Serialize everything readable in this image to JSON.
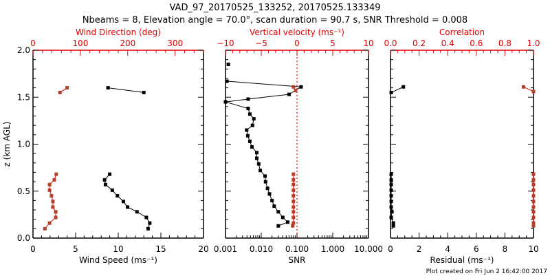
{
  "title_line1": "VAD_97_20170525_133252, 20170525.133349",
  "title_line2": "Nbeams = 8, Elevation angle = 70.0°, scan duration = 90.7 s, SNR Threshold = 0.008",
  "footer": "Plot created on Fri Jun  2 16:42:00 2017",
  "colors": {
    "primary": "#000000",
    "secondary": "#b5402a",
    "axis_red": "#e00000"
  },
  "chart_data": [
    {
      "type": "line",
      "panel": "wind",
      "ylabel": "z (km AGL)",
      "ylim": [
        0,
        2.0
      ],
      "yticks": [
        "0.0",
        "0.5",
        "1.0",
        "1.5",
        "2.0"
      ],
      "xlabel": "Wind Speed (ms⁻¹)",
      "xlim": [
        0,
        20
      ],
      "xticks": [
        "0",
        "5",
        "10",
        "15",
        "20"
      ],
      "top_xlabel": "Wind Direction (deg)",
      "top_xlim": [
        0,
        360
      ],
      "top_xticks": [
        "0",
        "100",
        "200",
        "300"
      ],
      "series": [
        {
          "name": "Wind Speed",
          "axis": "bottom",
          "color": "#000000",
          "segments": [
            [
              [
                8.8,
                1.6
              ],
              [
                13.0,
                1.55
              ]
            ],
            [
              [
                13.5,
                0.1
              ],
              [
                13.7,
                0.16
              ],
              [
                13.3,
                0.22
              ],
              [
                12.2,
                0.28
              ],
              [
                11.1,
                0.33
              ],
              [
                10.6,
                0.39
              ],
              [
                9.9,
                0.45
              ],
              [
                9.3,
                0.51
              ],
              [
                8.5,
                0.57
              ],
              [
                8.4,
                0.62
              ],
              [
                9.0,
                0.68
              ]
            ]
          ]
        },
        {
          "name": "Wind Direction",
          "axis": "top",
          "color": "#b5402a",
          "segments": [
            [
              [
                57,
                1.55
              ],
              [
                72,
                1.6
              ]
            ],
            [
              [
                25,
                0.1
              ],
              [
                35,
                0.16
              ],
              [
                48,
                0.22
              ],
              [
                48,
                0.28
              ],
              [
                42,
                0.33
              ],
              [
                42,
                0.39
              ],
              [
                39,
                0.45
              ],
              [
                35,
                0.51
              ],
              [
                35,
                0.57
              ],
              [
                45,
                0.62
              ],
              [
                49,
                0.68
              ]
            ]
          ]
        }
      ]
    },
    {
      "type": "line",
      "panel": "snr",
      "ylim": [
        0,
        2.0
      ],
      "xlabel": "SNR",
      "xscale": "log",
      "xlim": [
        0.001,
        10
      ],
      "xticks": [
        "0.001",
        "0.010",
        "0.100",
        "1.000",
        "10.000"
      ],
      "top_xlabel": "Vertical velocity (ms⁻¹)",
      "top_xlim": [
        -10,
        10
      ],
      "top_xticks": [
        "−10",
        "−5",
        "0",
        "5",
        "10"
      ],
      "reference_line": {
        "axis": "top",
        "value": 0
      },
      "series": [
        {
          "name": "SNR",
          "axis": "bottom",
          "color": "#000000",
          "segments": [
            [
              [
                0.0012,
                1.85
              ]
            ],
            [
              [
                0.0011,
                1.67
              ],
              [
                0.13,
                1.61
              ],
              [
                0.06,
                1.53
              ],
              [
                0.0043,
                1.48
              ],
              [
                0.0009,
                1.45
              ],
              [
                0.0043,
                1.38
              ],
              [
                0.0048,
                1.32
              ],
              [
                0.0062,
                1.27
              ],
              [
                0.0057,
                1.2
              ],
              [
                0.0039,
                1.15
              ],
              [
                0.0042,
                1.09
              ],
              [
                0.0048,
                1.03
              ],
              [
                0.0055,
                0.97
              ],
              [
                0.0075,
                0.91
              ],
              [
                0.0075,
                0.85
              ],
              [
                0.0085,
                0.79
              ],
              [
                0.0094,
                0.72
              ],
              [
                0.0128,
                0.66
              ],
              [
                0.0132,
                0.6
              ],
              [
                0.015,
                0.53
              ],
              [
                0.017,
                0.47
              ],
              [
                0.02,
                0.4
              ],
              [
                0.023,
                0.34
              ],
              [
                0.03,
                0.28
              ],
              [
                0.04,
                0.22
              ],
              [
                0.055,
                0.17
              ],
              [
                0.03,
                0.13
              ]
            ]
          ]
        },
        {
          "name": "Vertical velocity",
          "axis": "top",
          "color": "#b5402a",
          "segments": [
            [
              [
                -0.5,
                1.61
              ],
              [
                -0.2,
                1.57
              ]
            ],
            [
              [
                -0.6,
                0.13
              ],
              [
                -0.5,
                0.16
              ],
              [
                -0.5,
                0.22
              ],
              [
                -0.5,
                0.28
              ],
              [
                -0.5,
                0.33
              ],
              [
                -0.5,
                0.39
              ],
              [
                -0.5,
                0.45
              ],
              [
                -0.5,
                0.51
              ],
              [
                -0.5,
                0.57
              ],
              [
                -0.5,
                0.62
              ],
              [
                -0.5,
                0.68
              ]
            ]
          ]
        }
      ]
    },
    {
      "type": "line",
      "panel": "residual",
      "ylim": [
        0,
        2.0
      ],
      "xlabel": "Residual (ms⁻¹)",
      "xlim": [
        0,
        10
      ],
      "xticks": [
        "0",
        "2",
        "4",
        "6",
        "8",
        "10"
      ],
      "top_xlabel": "Correlation",
      "top_xlim": [
        0,
        1.0
      ],
      "top_xticks": [
        "0.0",
        "0.2",
        "0.4",
        "0.6",
        "0.8",
        "1.0"
      ],
      "series": [
        {
          "name": "Residual",
          "axis": "bottom",
          "color": "#000000",
          "segments": [
            [
              [
                0.05,
                1.55
              ],
              [
                0.9,
                1.61
              ]
            ],
            [
              [
                0.2,
                0.13
              ],
              [
                0.2,
                0.16
              ],
              [
                0.05,
                0.22
              ],
              [
                0.1,
                0.28
              ],
              [
                0.05,
                0.33
              ],
              [
                0.05,
                0.39
              ],
              [
                0.05,
                0.45
              ],
              [
                0.05,
                0.51
              ],
              [
                0.05,
                0.57
              ],
              [
                0.05,
                0.62
              ],
              [
                0.05,
                0.68
              ]
            ]
          ]
        },
        {
          "name": "Correlation",
          "axis": "top",
          "color": "#b5402a",
          "segments": [
            [
              [
                0.93,
                1.61
              ],
              [
                1.0,
                1.56
              ]
            ],
            [
              [
                1.0,
                0.13
              ],
              [
                1.0,
                0.16
              ],
              [
                1.0,
                0.22
              ],
              [
                1.0,
                0.28
              ],
              [
                1.0,
                0.33
              ],
              [
                1.0,
                0.39
              ],
              [
                1.0,
                0.45
              ],
              [
                1.0,
                0.51
              ],
              [
                1.0,
                0.57
              ],
              [
                1.0,
                0.62
              ],
              [
                1.0,
                0.68
              ]
            ]
          ]
        }
      ]
    }
  ]
}
